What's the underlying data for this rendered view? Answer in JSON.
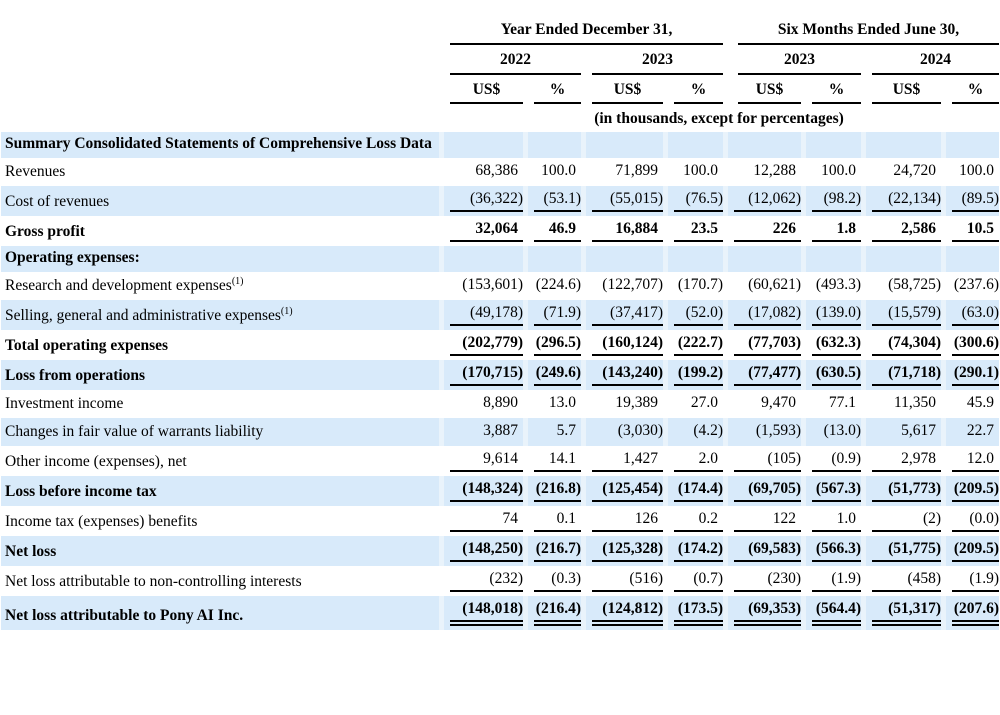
{
  "colors": {
    "stripe": "#d8eafa",
    "sliver": "#e9f3fb",
    "rule": "#000000",
    "text": "#000000"
  },
  "table": {
    "group_headers": [
      {
        "label": "Year Ended December 31,"
      },
      {
        "label": "Six Months Ended June 30,"
      }
    ],
    "year_headers": [
      "2022",
      "2023",
      "2023",
      "2024"
    ],
    "col_headers": [
      "US$",
      "%",
      "US$",
      "%",
      "US$",
      "%",
      "US$",
      "%"
    ],
    "units_note": "(in thousands, except for percentages)",
    "rows": [
      {
        "label": "Summary Consolidated Statements of Comprehensive Loss Data",
        "bold": true,
        "shaded": true,
        "underline": "none",
        "values": [
          "",
          "",
          "",
          "",
          "",
          "",
          "",
          ""
        ]
      },
      {
        "label": "Revenues",
        "bold": false,
        "shaded": false,
        "underline": "none",
        "values": [
          "68,386",
          "100.0",
          "71,899",
          "100.0",
          "12,288",
          "100.0",
          "24,720",
          "100.0"
        ]
      },
      {
        "label": "Cost of revenues",
        "bold": false,
        "shaded": true,
        "underline": "single",
        "values": [
          "(36,322)",
          "(53.1)",
          "(55,015)",
          "(76.5)",
          "(12,062)",
          "(98.2)",
          "(22,134)",
          "(89.5)"
        ]
      },
      {
        "label": "Gross profit",
        "bold": true,
        "shaded": false,
        "underline": "single",
        "values": [
          "32,064",
          "46.9",
          "16,884",
          "23.5",
          "226",
          "1.8",
          "2,586",
          "10.5"
        ]
      },
      {
        "label": "Operating expenses:",
        "bold": true,
        "shaded": true,
        "underline": "none",
        "values": [
          "",
          "",
          "",
          "",
          "",
          "",
          "",
          ""
        ]
      },
      {
        "label": "Research and development expenses",
        "sup": "(1)",
        "bold": false,
        "shaded": false,
        "underline": "none",
        "values": [
          "(153,601)",
          "(224.6)",
          "(122,707)",
          "(170.7)",
          "(60,621)",
          "(493.3)",
          "(58,725)",
          "(237.6)"
        ]
      },
      {
        "label": "Selling, general and administrative expenses",
        "sup": "(1)",
        "bold": false,
        "shaded": true,
        "underline": "single",
        "values": [
          "(49,178)",
          "(71.9)",
          "(37,417)",
          "(52.0)",
          "(17,082)",
          "(139.0)",
          "(15,579)",
          "(63.0)"
        ]
      },
      {
        "label": "Total operating expenses",
        "bold": true,
        "shaded": false,
        "underline": "single",
        "values": [
          "(202,779)",
          "(296.5)",
          "(160,124)",
          "(222.7)",
          "(77,703)",
          "(632.3)",
          "(74,304)",
          "(300.6)"
        ]
      },
      {
        "label": "Loss from operations",
        "bold": true,
        "shaded": true,
        "underline": "single",
        "values": [
          "(170,715)",
          "(249.6)",
          "(143,240)",
          "(199.2)",
          "(77,477)",
          "(630.5)",
          "(71,718)",
          "(290.1)"
        ]
      },
      {
        "label": "Investment income",
        "bold": false,
        "shaded": false,
        "underline": "none",
        "values": [
          "8,890",
          "13.0",
          "19,389",
          "27.0",
          "9,470",
          "77.1",
          "11,350",
          "45.9"
        ]
      },
      {
        "label": "Changes in fair value of warrants liability",
        "bold": false,
        "shaded": true,
        "underline": "none",
        "values": [
          "3,887",
          "5.7",
          "(3,030)",
          "(4.2)",
          "(1,593)",
          "(13.0)",
          "5,617",
          "22.7"
        ]
      },
      {
        "label": "Other income (expenses), net",
        "bold": false,
        "shaded": false,
        "underline": "single",
        "values": [
          "9,614",
          "14.1",
          "1,427",
          "2.0",
          "(105)",
          "(0.9)",
          "2,978",
          "12.0"
        ]
      },
      {
        "label": "Loss before income tax",
        "bold": true,
        "shaded": true,
        "underline": "single",
        "values": [
          "(148,324)",
          "(216.8)",
          "(125,454)",
          "(174.4)",
          "(69,705)",
          "(567.3)",
          "(51,773)",
          "(209.5)"
        ]
      },
      {
        "label": "Income tax (expenses) benefits",
        "bold": false,
        "shaded": false,
        "underline": "single",
        "values": [
          "74",
          "0.1",
          "126",
          "0.2",
          "122",
          "1.0",
          "(2)",
          "(0.0)"
        ]
      },
      {
        "label": "Net loss",
        "bold": true,
        "shaded": true,
        "underline": "single",
        "values": [
          "(148,250)",
          "(216.7)",
          "(125,328)",
          "(174.2)",
          "(69,583)",
          "(566.3)",
          "(51,775)",
          "(209.5)"
        ]
      },
      {
        "label": "Net loss attributable to non-controlling interests",
        "bold": false,
        "shaded": false,
        "underline": "single",
        "values": [
          "(232)",
          "(0.3)",
          "(516)",
          "(0.7)",
          "(230)",
          "(1.9)",
          "(458)",
          "(1.9)"
        ]
      },
      {
        "label": "Net loss attributable to Pony AI Inc.",
        "bold": true,
        "shaded": true,
        "underline": "double",
        "values": [
          "(148,018)",
          "(216.4)",
          "(124,812)",
          "(173.5)",
          "(69,353)",
          "(564.4)",
          "(51,317)",
          "(207.6)"
        ]
      }
    ]
  }
}
